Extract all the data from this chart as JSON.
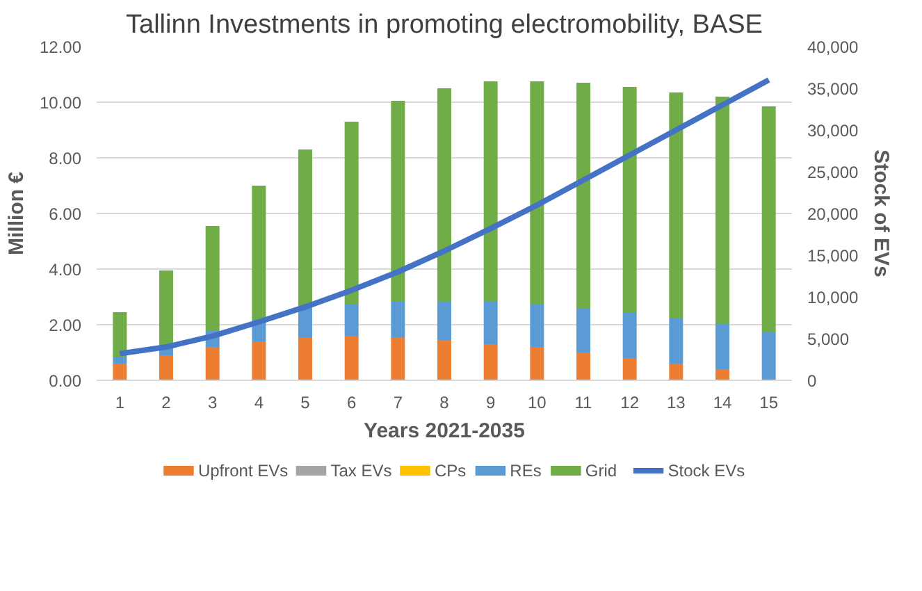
{
  "chart_data": {
    "type": "bar",
    "stacked": true,
    "title": "Tallinn Investments in promoting electromobility, BASE",
    "xlabel": "Years 2021-2035",
    "ylabel": "Million €",
    "y2label": "Stock of EVs",
    "x": [
      1,
      2,
      3,
      4,
      5,
      6,
      7,
      8,
      9,
      10,
      11,
      12,
      13,
      14,
      15
    ],
    "xlim": [
      0.5,
      15.5
    ],
    "xticks": [
      1,
      2,
      3,
      4,
      5,
      6,
      7,
      8,
      9,
      10,
      11,
      12,
      13,
      14,
      15
    ],
    "ylim": [
      0,
      12
    ],
    "yticks": [
      {
        "value": 0,
        "label": "0.00"
      },
      {
        "value": 2,
        "label": "2.00"
      },
      {
        "value": 4,
        "label": "4.00"
      },
      {
        "value": 6,
        "label": "6.00"
      },
      {
        "value": 8,
        "label": "8.00"
      },
      {
        "value": 10,
        "label": "10.00"
      },
      {
        "value": 12,
        "label": "12.00"
      }
    ],
    "y2lim": [
      0,
      40000
    ],
    "y2ticks": [
      0,
      {
        "value": 5000,
        "label": "5,000"
      },
      {
        "value": 10000,
        "label": "10,000"
      },
      {
        "value": 15000,
        "label": "15,000"
      },
      {
        "value": 20000,
        "label": "20,000"
      },
      {
        "value": 25000,
        "label": "25,000"
      },
      {
        "value": 30000,
        "label": "30,000"
      },
      {
        "value": 35000,
        "label": "35,000"
      },
      {
        "value": 40000,
        "label": "40,000"
      }
    ],
    "grid": "y",
    "legend": "bottom",
    "series": [
      {
        "name": "Upfront EVs",
        "color": "#ed7d31",
        "values": [
          0.6,
          0.9,
          1.2,
          1.4,
          1.55,
          1.6,
          1.55,
          1.45,
          1.3,
          1.2,
          1.0,
          0.8,
          0.6,
          0.4,
          0
        ]
      },
      {
        "name": "Tax EVs",
        "color": "#a5a5a5",
        "values": [
          0,
          0,
          0,
          0,
          0,
          0,
          0,
          0,
          0,
          0,
          0,
          0,
          0,
          0,
          0
        ]
      },
      {
        "name": "CPs",
        "color": "#ffc000",
        "values": [
          0,
          0,
          0,
          0,
          0,
          0,
          0,
          0,
          0,
          0,
          0,
          0,
          0,
          0,
          0
        ]
      },
      {
        "name": "REs",
        "color": "#5b9bd5",
        "values": [
          0.25,
          0.4,
          0.6,
          0.8,
          1.05,
          1.15,
          1.3,
          1.4,
          1.55,
          1.55,
          1.6,
          1.65,
          1.65,
          1.65,
          1.75
        ]
      },
      {
        "name": "Grid",
        "color": "#70ad47",
        "values": [
          1.6,
          2.65,
          3.75,
          4.8,
          5.7,
          6.55,
          7.2,
          7.65,
          7.9,
          8.0,
          8.1,
          8.1,
          8.1,
          8.15,
          8.1
        ]
      },
      {
        "name": "Stock EVs",
        "type": "line",
        "axis": "y2",
        "color": "#4472c4",
        "values": [
          3200,
          4000,
          5300,
          7000,
          8800,
          10800,
          13000,
          15500,
          18200,
          21000,
          24000,
          27000,
          30000,
          33000,
          36000
        ]
      }
    ]
  }
}
